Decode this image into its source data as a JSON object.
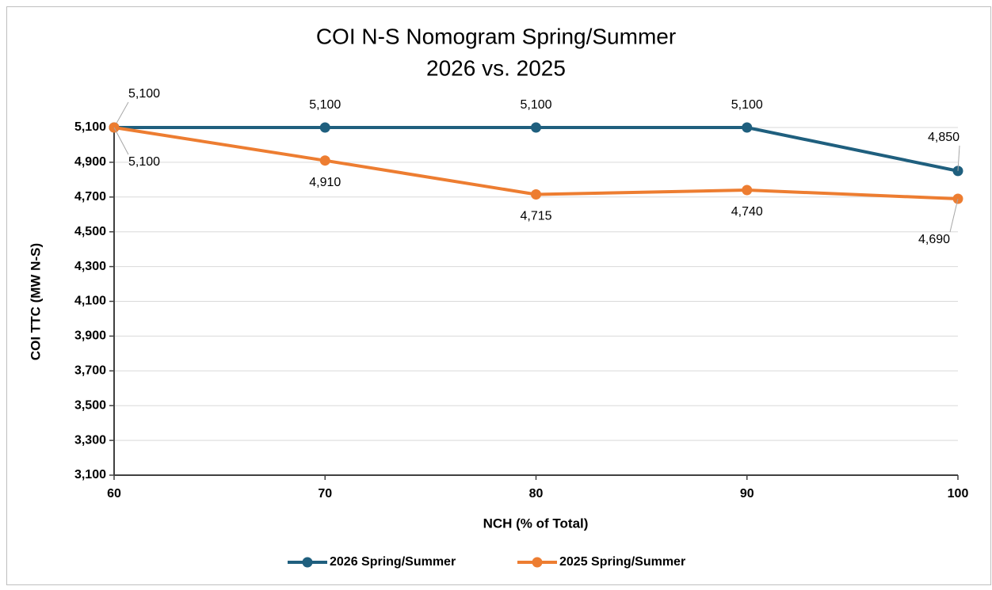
{
  "chart_data": {
    "type": "line",
    "title": [
      "COI N-S Nomogram Spring/Summer",
      "2026 vs. 2025"
    ],
    "xlabel": "NCH (% of Total)",
    "ylabel": "COI TTC (MW N-S)",
    "x": [
      60,
      70,
      80,
      90,
      100
    ],
    "series": [
      {
        "name": "2026 Spring/Summer",
        "color": "#1f5f7e",
        "values": [
          5100,
          5100,
          5100,
          5100,
          4850
        ],
        "value_labels": [
          "5,100",
          "5,100",
          "5,100",
          "5,100",
          "4,850"
        ]
      },
      {
        "name": "2025 Spring/Summer",
        "color": "#ed7d31",
        "values": [
          5100,
          4910,
          4715,
          4740,
          4690
        ],
        "value_labels": [
          "5,100",
          "4,910",
          "4,715",
          "4,740",
          "4,690"
        ]
      }
    ],
    "xlim": [
      60,
      100
    ],
    "xticks": [
      60,
      70,
      80,
      90,
      100
    ],
    "ylim": [
      3100,
      5100
    ],
    "yticks": [
      {
        "value": 3100,
        "label": "3,100"
      },
      {
        "value": 3300,
        "label": "3,300"
      },
      {
        "value": 3500,
        "label": "3,500"
      },
      {
        "value": 3700,
        "label": "3,700"
      },
      {
        "value": 3900,
        "label": "3,900"
      },
      {
        "value": 4100,
        "label": "4,100"
      },
      {
        "value": 4300,
        "label": "4,300"
      },
      {
        "value": 4500,
        "label": "4,500"
      },
      {
        "value": 4700,
        "label": "4,700"
      },
      {
        "value": 4900,
        "label": "4,900"
      },
      {
        "value": 5100,
        "label": "5,100"
      }
    ],
    "grid": true,
    "legend": "bottom"
  }
}
